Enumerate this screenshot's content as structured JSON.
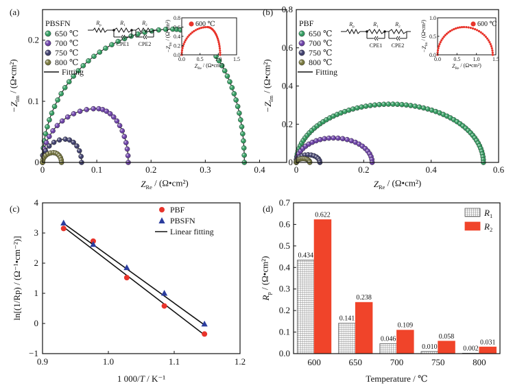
{
  "chart_data": [
    {
      "id": "a",
      "panel_label": "(a)",
      "type": "scatter",
      "xlabel_main": "Z",
      "xlabel_sub": "Re",
      "xlabel_unit": " / (Ω•cm²)",
      "ylabel_main": "−Z",
      "ylabel_sub": "Im",
      "ylabel_unit": " / (Ω•cm²)",
      "xlim": [
        0,
        0.45
      ],
      "ylim": [
        0,
        0.25
      ],
      "xticks": [
        "0",
        "0.1",
        "0.2",
        "0.3",
        "0.4"
      ],
      "yticks": [
        "0",
        "0.1",
        "0.2"
      ],
      "legend_title": "PBSFN",
      "legend_fit": "Fitting",
      "series": [
        {
          "name": "650 ℃",
          "color": "#2e9c5e",
          "arc": [
            0.0,
            0.372,
            0.218,
            0.24
          ]
        },
        {
          "name": "700 ℃",
          "color": "#6a3da8",
          "arc": [
            0.0,
            0.158,
            0.088,
            0.1
          ]
        },
        {
          "name": "750 ℃",
          "color": "#3a3a6a",
          "arc": [
            0.0,
            0.072,
            0.038,
            0.042
          ]
        },
        {
          "name": "800 ℃",
          "color": "#77773a",
          "arc": [
            0.0,
            0.035,
            0.016,
            0.02
          ]
        }
      ],
      "circuit": {
        "r0": "R",
        "r0_sub": "p",
        "r1": "R",
        "r1_sub": "1",
        "r2": "R",
        "r2_sub": "2",
        "c1": "CPE1",
        "c2": "CPE2"
      },
      "inset": {
        "label": "600 ℃",
        "color": "#e8342b",
        "xlim": [
          0,
          1.5
        ],
        "ylim": [
          0,
          0.8
        ],
        "xticks": [
          "0.0",
          "0.5",
          "1.0",
          "1.5"
        ],
        "yticks": [
          "0.0",
          "0.2",
          "0.4",
          "0.6",
          "0.8"
        ],
        "xlabel_main": "Z",
        "xlabel_sub": "Re",
        "xlabel_unit": " / (Ω•cm²)",
        "ylabel_main": "−Z",
        "ylabel_sub": "Im",
        "ylabel_unit": " / (Ω•cm²)",
        "arc": [
          0.0,
          1.05,
          0.6,
          0.7
        ]
      }
    },
    {
      "id": "b",
      "panel_label": "(b)",
      "type": "scatter",
      "xlabel_main": "Z",
      "xlabel_sub": "Re",
      "xlabel_unit": " / (Ω•cm²)",
      "ylabel_main": "−Z",
      "ylabel_sub": "Im",
      "ylabel_unit": " / (Ω•cm²)",
      "xlim": [
        0,
        0.6
      ],
      "ylim": [
        0,
        0.8
      ],
      "xticks": [
        "0",
        "0.2",
        "0.4",
        "0.6"
      ],
      "yticks": [
        "0",
        "0.2",
        "0.4",
        "0.6",
        "0.8"
      ],
      "legend_title": "PBF",
      "legend_fit": "Fitting",
      "series": [
        {
          "name": "650 ℃",
          "color": "#2e9c5e",
          "arc": [
            0.0,
            0.555,
            0.305,
            0.28
          ]
        },
        {
          "name": "700 ℃",
          "color": "#6a3da8",
          "arc": [
            0.0,
            0.225,
            0.128,
            0.11
          ]
        },
        {
          "name": "750 ℃",
          "color": "#3a3a6a",
          "arc": [
            0.0,
            0.07,
            0.04,
            0.035
          ]
        },
        {
          "name": "800 ℃",
          "color": "#77773a",
          "arc": [
            0.0,
            0.04,
            0.02,
            0.02
          ]
        }
      ],
      "circuit": {
        "r0": "R",
        "r0_sub": "p",
        "r1": "R",
        "r1_sub": "1",
        "r2": "R",
        "r2_sub": "2",
        "c1": "CPE1",
        "c2": "CPE2"
      },
      "inset": {
        "label": "600 ℃",
        "color": "#e8342b",
        "xlim": [
          0,
          1.5
        ],
        "ylim": [
          0,
          1.0
        ],
        "xticks": [
          "0.0",
          "0.5",
          "1.0",
          "1.5"
        ],
        "yticks": [
          "0.0",
          "0.5",
          "1.0"
        ],
        "xlabel_main": "Z",
        "xlabel_sub": "Re",
        "xlabel_unit": " / (Ω•cm²)",
        "ylabel_main": "−Z",
        "ylabel_sub": "Im",
        "ylabel_unit": " / (Ω•cm²)",
        "arc": [
          0.0,
          1.42,
          0.75,
          0.68
        ]
      }
    },
    {
      "id": "c",
      "panel_label": "(c)",
      "type": "scatter",
      "xlabel": "1 000/T / K⁻¹",
      "xlabel_pre": "1 000/",
      "xlabel_it": "T",
      "xlabel_post": " / K⁻¹",
      "ylabel": "ln[(1/Rp) / (Ω⁻¹•cm⁻²)]",
      "xlim": [
        0.9,
        1.2
      ],
      "ylim": [
        -1,
        4
      ],
      "xticks": [
        "0.9",
        "1.0",
        "1.1",
        "1.2"
      ],
      "yticks": [
        "−1",
        "0",
        "1",
        "2",
        "3",
        "4"
      ],
      "series": [
        {
          "name": "PBF",
          "marker": "circle",
          "color": "#e8342b",
          "x": [
            0.932,
            0.977,
            1.028,
            1.085,
            1.146
          ],
          "y": [
            3.15,
            2.73,
            1.52,
            0.58,
            -0.35
          ],
          "fit": [
            [
              0.932,
              3.2
            ],
            [
              1.146,
              -0.38
            ]
          ]
        },
        {
          "name": "PBSFN",
          "marker": "triangle",
          "color": "#2b3d9e",
          "x": [
            0.932,
            0.977,
            1.028,
            1.085,
            1.146
          ],
          "y": [
            3.33,
            2.62,
            1.85,
            1.0,
            -0.02
          ],
          "fit": [
            [
              0.932,
              3.32
            ],
            [
              1.146,
              -0.05
            ]
          ]
        }
      ],
      "fit_label": "Linear fitting"
    },
    {
      "id": "d",
      "panel_label": "(d)",
      "type": "bar",
      "categories": [
        "600",
        "650",
        "700",
        "750",
        "800"
      ],
      "xlabel": "Temperature / ℃",
      "ylabel_main": "R",
      "ylabel_sub": "p",
      "ylabel_unit": " / (Ω•cm²)",
      "ylim": [
        0,
        0.7
      ],
      "yticks": [
        "0.0",
        "0.1",
        "0.2",
        "0.3",
        "0.4",
        "0.5",
        "0.6",
        "0.7"
      ],
      "series": [
        {
          "name": "R",
          "name_sub": "1",
          "color": "#9a9a9a",
          "pattern": "grid",
          "values": [
            0.434,
            0.141,
            0.046,
            0.01,
            0.002
          ],
          "labels": [
            "0.434",
            "0.141",
            "0.046",
            "0.010",
            "0.002"
          ]
        },
        {
          "name": "R",
          "name_sub": "2",
          "color": "#f0442a",
          "values": [
            0.622,
            0.238,
            0.109,
            0.058,
            0.031
          ],
          "labels": [
            "0.622",
            "0.238",
            "0.109",
            "0.058",
            "0.031"
          ]
        }
      ]
    }
  ]
}
